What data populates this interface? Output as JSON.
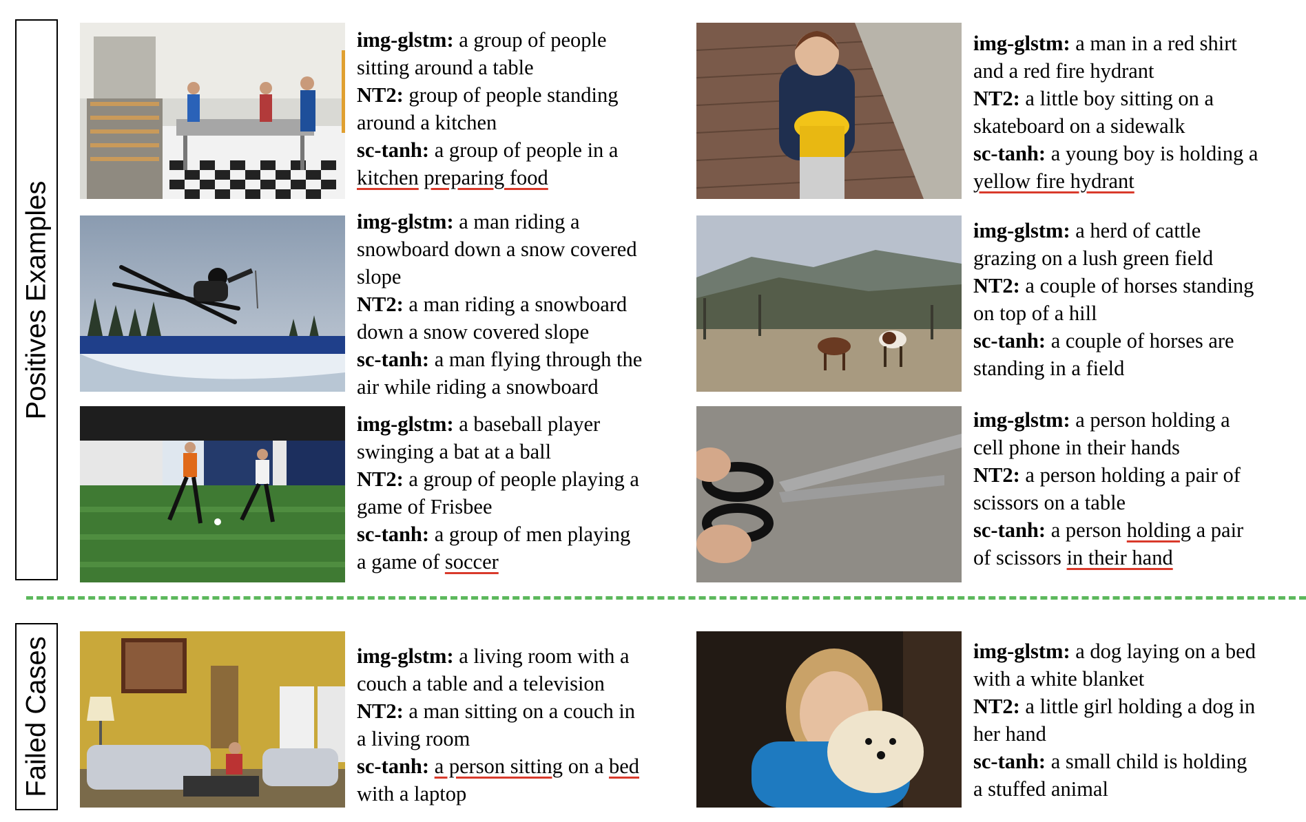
{
  "sections": {
    "positive_label": "Positives Examples",
    "failed_label": "Failed Cases"
  },
  "colors": {
    "underline": "#d93a2b",
    "divider": "#5cb85c"
  },
  "labels": {
    "img": "img-glstm:",
    "nt2": "NT2:",
    "sc": "sc-tanh:"
  },
  "examples": [
    {
      "image": "kitchen-photo",
      "img_glstm": "a group of people sitting around a table",
      "nt2": "group of people standing around a kitchen",
      "sc_tanh": "a group of people in a kitchen preparing food"
    },
    {
      "image": "ski-jump-photo",
      "img_glstm": "a man riding a snowboard down a snow covered slope",
      "nt2": "a man riding a snowboard down a snow covered slope",
      "sc_tanh": "a man flying through the air while riding a snowboard"
    },
    {
      "image": "soccer-photo",
      "img_glstm": "a baseball player swinging a bat at a ball",
      "nt2": "a group of people playing a game of Frisbee",
      "sc_tanh": "a group of men playing a game of soccer"
    },
    {
      "image": "living-room-photo",
      "img_glstm": "a living room with a couch a table and a television",
      "nt2": "a man sitting on a couch in a living room",
      "sc_tanh": "a person sitting on a bed with a laptop"
    },
    {
      "image": "boy-hydrant-photo",
      "img_glstm": "a man in a red shirt and a red fire hydrant",
      "nt2": "a little boy sitting on a skateboard on a sidewalk",
      "sc_tanh": "a young boy is holding a yellow fire hydrant"
    },
    {
      "image": "horses-photo",
      "img_glstm": "a herd of cattle grazing on a lush green field",
      "nt2": "a couple of horses standing on top of a hill",
      "sc_tanh": "a couple of horses are standing in a field"
    },
    {
      "image": "scissors-photo",
      "img_glstm": "a person holding a cell phone in their hands",
      "nt2": "a person holding a pair of scissors on a table",
      "sc_tanh": "a person holding a pair of scissors in their hand"
    },
    {
      "image": "girl-dog-photo",
      "img_glstm": "a dog laying on a bed with a white blanket",
      "nt2": "a little girl holding a dog in her hand",
      "sc_tanh": "a small child is holding a stuffed animal"
    }
  ],
  "captions": [
    [
      "a group of people",
      "sitting around a table",
      "group of people standing",
      "around a kitchen",
      "a group of people in a",
      "kitchen",
      "preparing food"
    ],
    [
      "a man riding a",
      "snowboard down a snow covered",
      "slope",
      "a man riding a snowboard",
      "down a snow covered slope",
      "a man flying through the",
      "air while riding a snowboard"
    ],
    [
      "a baseball player",
      "swinging a bat at a ball",
      "a group of people playing a",
      "game of Frisbee",
      "a group of men playing",
      "a game of",
      "soccer"
    ],
    [
      "a living room with a",
      "couch a table and a television",
      "a man sitting on a couch in",
      "a living room",
      "a person sitting",
      "on a",
      "bed",
      "with a laptop"
    ],
    [
      "a man in a red shirt",
      "and a red fire hydrant",
      "a little boy sitting on a",
      "skateboard on a sidewalk",
      "a young boy is holding a",
      "yellow fire hydrant"
    ],
    [
      "a herd of cattle",
      "grazing on a lush green field",
      "a couple of horses standing",
      "on top of a hill",
      "a couple of horses are",
      "standing in a field"
    ],
    [
      "a person holding a",
      "cell phone in their hands",
      "a person holding a pair of",
      "scissors on a table",
      "a person",
      "holding",
      "a pair",
      "of scissors",
      "in their hand"
    ],
    [
      "a dog laying on a bed",
      "with a white blanket",
      "a little girl holding a dog in",
      "her hand",
      "a small child is holding",
      "a stuffed animal"
    ]
  ]
}
